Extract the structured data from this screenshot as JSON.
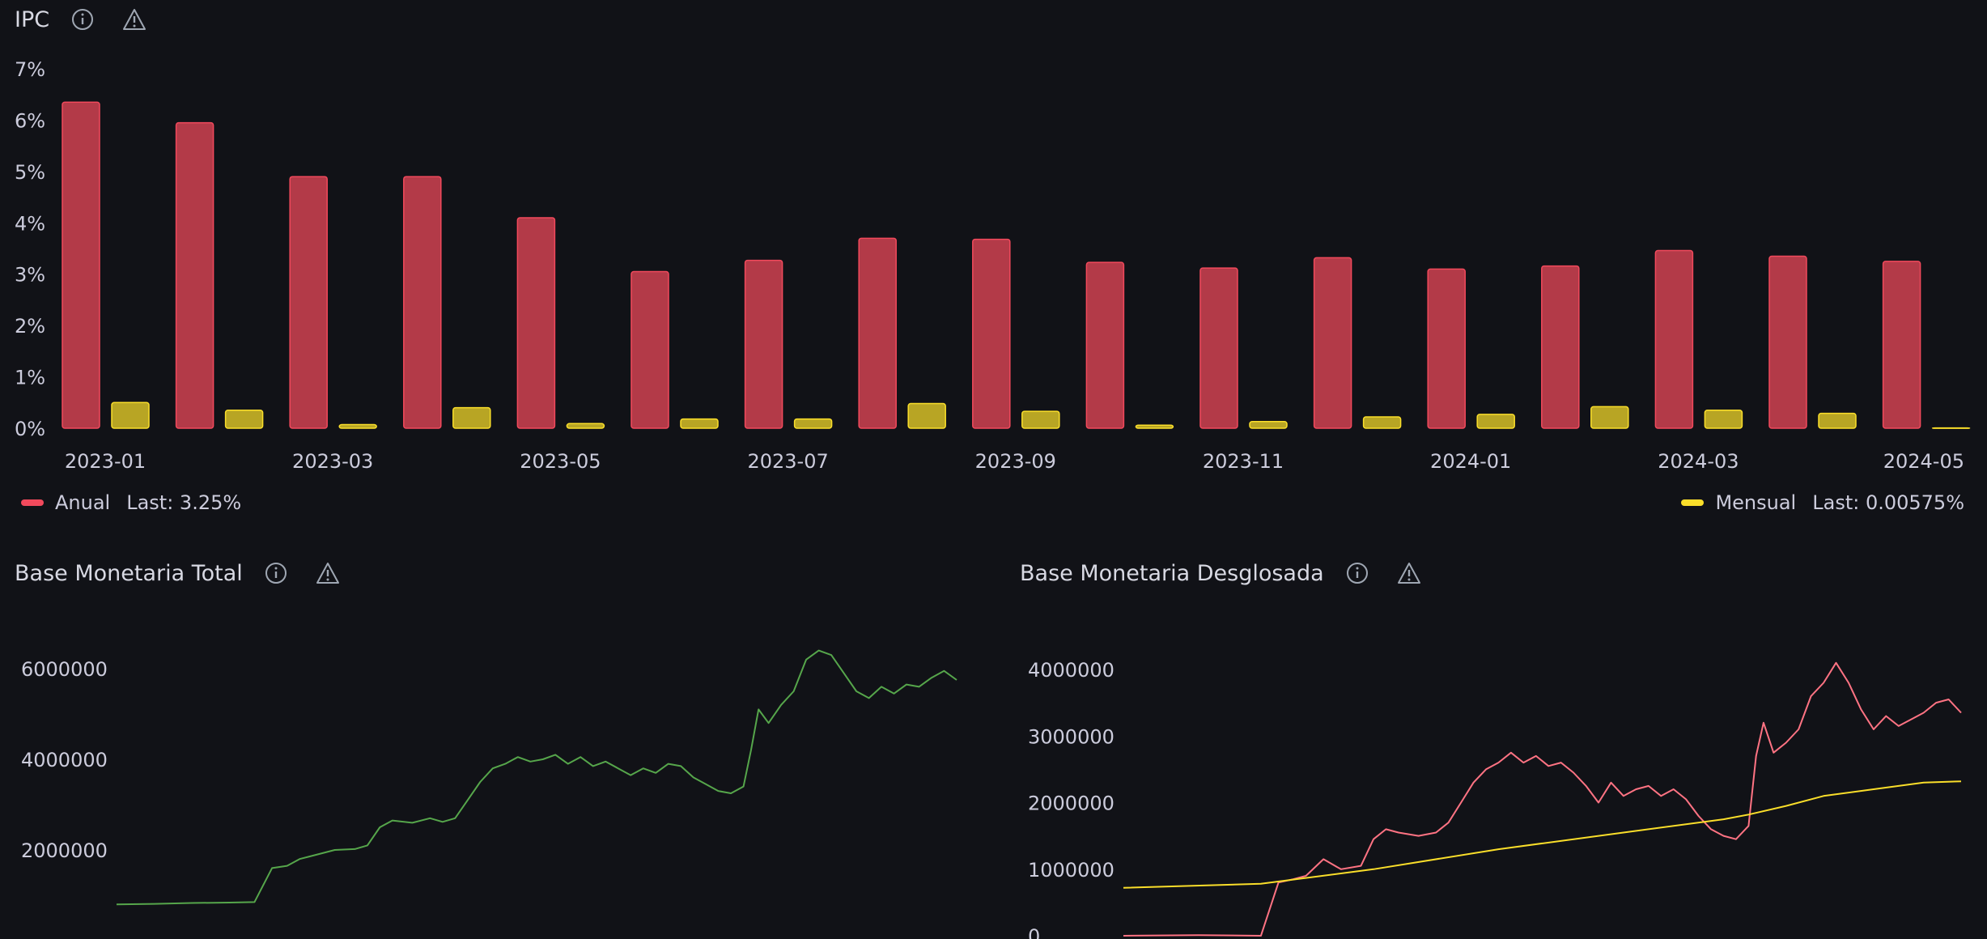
{
  "panels": {
    "ipc": {
      "title": "IPC"
    },
    "base_total": {
      "title": "Base Monetaria Total"
    },
    "base_desglosada": {
      "title": "Base Monetaria Desglosada"
    }
  },
  "icons": {
    "info": "info-circle-icon",
    "warning": "warning-triangle-icon"
  },
  "ipc_legend": [
    {
      "name": "Anual",
      "last": "Last: 3.25%",
      "color": "#f2495c"
    },
    {
      "name": "Mensual",
      "last": "Last: 0.00575%",
      "color": "#fade2a"
    }
  ],
  "chart_data": [
    {
      "type": "bar",
      "title": "IPC",
      "ylim": [
        0,
        7
      ],
      "y_ticks": [
        "0%",
        "1%",
        "2%",
        "3%",
        "4%",
        "5%",
        "6%",
        "7%"
      ],
      "x_tick_labels": [
        "2023-01",
        "2023-03",
        "2023-05",
        "2023-07",
        "2023-09",
        "2023-11",
        "2024-01",
        "2024-03",
        "2024-05"
      ],
      "categories": [
        "2023-01",
        "2023-02",
        "2023-03",
        "2023-04",
        "2023-05",
        "2023-06",
        "2023-07",
        "2023-08",
        "2023-09",
        "2023-10",
        "2023-11",
        "2023-12",
        "2024-01",
        "2024-02",
        "2024-03",
        "2024-04",
        "2024-05"
      ],
      "series": [
        {
          "name": "Anual",
          "color": "#f2495c",
          "values": [
            6.35,
            5.95,
            4.9,
            4.9,
            4.1,
            3.05,
            3.27,
            3.7,
            3.68,
            3.23,
            3.12,
            3.32,
            3.1,
            3.16,
            3.46,
            3.35,
            3.25
          ]
        },
        {
          "name": "Mensual",
          "color": "#fade2a",
          "values": [
            0.5,
            0.35,
            0.07,
            0.4,
            0.09,
            0.18,
            0.18,
            0.48,
            0.33,
            0.06,
            0.13,
            0.22,
            0.27,
            0.42,
            0.35,
            0.29,
            0.00575
          ]
        }
      ],
      "grid": false,
      "legend": "bottom"
    },
    {
      "type": "line",
      "title": "Base Monetaria Total",
      "y_ticks": [
        2000000,
        4000000,
        6000000
      ],
      "series": [
        {
          "color": "#56a64b",
          "values": [
            [
              0,
              800000
            ],
            [
              15,
              810000
            ],
            [
              30,
              830000
            ],
            [
              45,
              840000
            ],
            [
              55,
              850000
            ],
            [
              62,
              1600000
            ],
            [
              68,
              1650000
            ],
            [
              73,
              1800000
            ],
            [
              80,
              1900000
            ],
            [
              87,
              2000000
            ],
            [
              95,
              2020000
            ],
            [
              100,
              2100000
            ],
            [
              105,
              2500000
            ],
            [
              110,
              2650000
            ],
            [
              118,
              2600000
            ],
            [
              125,
              2700000
            ],
            [
              130,
              2620000
            ],
            [
              135,
              2700000
            ],
            [
              140,
              3100000
            ],
            [
              145,
              3500000
            ],
            [
              150,
              3800000
            ],
            [
              155,
              3900000
            ],
            [
              160,
              4050000
            ],
            [
              165,
              3950000
            ],
            [
              170,
              4000000
            ],
            [
              175,
              4100000
            ],
            [
              180,
              3900000
            ],
            [
              185,
              4050000
            ],
            [
              190,
              3850000
            ],
            [
              195,
              3950000
            ],
            [
              200,
              3800000
            ],
            [
              205,
              3650000
            ],
            [
              210,
              3800000
            ],
            [
              215,
              3700000
            ],
            [
              220,
              3900000
            ],
            [
              225,
              3850000
            ],
            [
              230,
              3600000
            ],
            [
              235,
              3450000
            ],
            [
              240,
              3300000
            ],
            [
              245,
              3250000
            ],
            [
              250,
              3400000
            ],
            [
              253,
              4200000
            ],
            [
              256,
              5100000
            ],
            [
              260,
              4800000
            ],
            [
              265,
              5200000
            ],
            [
              270,
              5500000
            ],
            [
              275,
              6200000
            ],
            [
              280,
              6400000
            ],
            [
              285,
              6300000
            ],
            [
              290,
              5900000
            ],
            [
              295,
              5500000
            ],
            [
              300,
              5350000
            ],
            [
              305,
              5600000
            ],
            [
              310,
              5450000
            ],
            [
              315,
              5650000
            ],
            [
              320,
              5600000
            ],
            [
              325,
              5800000
            ],
            [
              330,
              5950000
            ],
            [
              335,
              5750000
            ]
          ]
        }
      ]
    },
    {
      "type": "line",
      "title": "Base Monetaria Desglosada",
      "y_ticks": [
        0,
        1000000,
        2000000,
        3000000,
        4000000
      ],
      "series": [
        {
          "color": "#ff7383",
          "values": [
            [
              0,
              0
            ],
            [
              30,
              10000
            ],
            [
              55,
              0
            ],
            [
              62,
              800000
            ],
            [
              68,
              850000
            ],
            [
              73,
              900000
            ],
            [
              80,
              1150000
            ],
            [
              87,
              1000000
            ],
            [
              95,
              1050000
            ],
            [
              100,
              1450000
            ],
            [
              105,
              1600000
            ],
            [
              110,
              1550000
            ],
            [
              118,
              1500000
            ],
            [
              125,
              1550000
            ],
            [
              130,
              1700000
            ],
            [
              135,
              2000000
            ],
            [
              140,
              2300000
            ],
            [
              145,
              2500000
            ],
            [
              150,
              2600000
            ],
            [
              155,
              2750000
            ],
            [
              160,
              2600000
            ],
            [
              165,
              2700000
            ],
            [
              170,
              2550000
            ],
            [
              175,
              2600000
            ],
            [
              180,
              2450000
            ],
            [
              185,
              2250000
            ],
            [
              190,
              2000000
            ],
            [
              195,
              2300000
            ],
            [
              200,
              2100000
            ],
            [
              205,
              2200000
            ],
            [
              210,
              2250000
            ],
            [
              215,
              2100000
            ],
            [
              220,
              2200000
            ],
            [
              225,
              2050000
            ],
            [
              230,
              1800000
            ],
            [
              235,
              1600000
            ],
            [
              240,
              1500000
            ],
            [
              245,
              1450000
            ],
            [
              250,
              1650000
            ],
            [
              253,
              2700000
            ],
            [
              256,
              3200000
            ],
            [
              260,
              2750000
            ],
            [
              265,
              2900000
            ],
            [
              270,
              3100000
            ],
            [
              275,
              3600000
            ],
            [
              280,
              3800000
            ],
            [
              285,
              4100000
            ],
            [
              290,
              3800000
            ],
            [
              295,
              3400000
            ],
            [
              300,
              3100000
            ],
            [
              305,
              3300000
            ],
            [
              310,
              3150000
            ],
            [
              315,
              3250000
            ],
            [
              320,
              3350000
            ],
            [
              325,
              3500000
            ],
            [
              330,
              3550000
            ],
            [
              335,
              3350000
            ]
          ]
        },
        {
          "color": "#fade2a",
          "values": [
            [
              0,
              720000
            ],
            [
              55,
              780000
            ],
            [
              100,
              1000000
            ],
            [
              150,
              1300000
            ],
            [
              200,
              1550000
            ],
            [
              240,
              1750000
            ],
            [
              250,
              1820000
            ],
            [
              265,
              1950000
            ],
            [
              280,
              2100000
            ],
            [
              300,
              2200000
            ],
            [
              320,
              2300000
            ],
            [
              335,
              2320000
            ]
          ]
        }
      ]
    }
  ]
}
